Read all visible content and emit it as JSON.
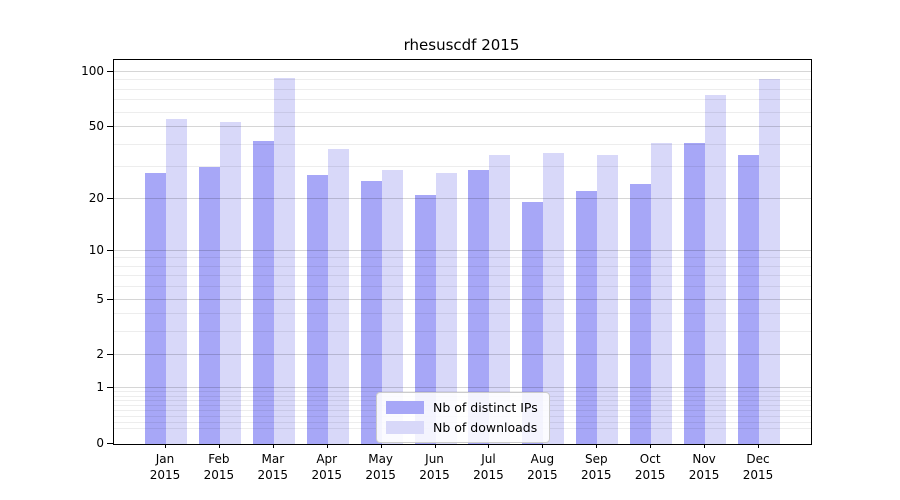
{
  "chart_data": {
    "type": "bar",
    "title": "rhesuscdf 2015",
    "scale": "log1p",
    "categories": [
      "Jan",
      "Feb",
      "Mar",
      "Apr",
      "May",
      "Jun",
      "Jul",
      "Aug",
      "Sep",
      "Oct",
      "Nov",
      "Dec"
    ],
    "x_tick_second_line": "2015",
    "series": [
      {
        "name": "Nb of distinct IPs",
        "color": "#a7a7f7",
        "values": [
          28,
          30,
          42,
          27,
          25,
          21,
          29,
          19,
          22,
          24,
          41,
          35
        ]
      },
      {
        "name": "Nb of downloads",
        "color": "#d8d8f9",
        "values": [
          55,
          53,
          93,
          38,
          29,
          28,
          35,
          36,
          35,
          41,
          75,
          91
        ]
      }
    ],
    "y_major_ticks": [
      0,
      1,
      2,
      5,
      10,
      20,
      50,
      100
    ],
    "y_minor_ticks": [
      0.2,
      0.3,
      0.4,
      0.5,
      0.6,
      0.7,
      0.8,
      0.9,
      3,
      4,
      6,
      7,
      8,
      9,
      30,
      40,
      60,
      70,
      80,
      90
    ],
    "ylim": [
      0,
      116
    ],
    "xlabel": "",
    "ylabel": "",
    "grid": "horizontal",
    "legend_position": "lower center"
  },
  "colors": {
    "background": "#ffffff",
    "bar_distinct_ips": "#a7a7f7",
    "bar_downloads": "#d8d8f9",
    "grid_major": "#d4d4d4",
    "grid_minor": "#ebebeb",
    "spine": "#000000",
    "legend_border": "#cccccc"
  }
}
